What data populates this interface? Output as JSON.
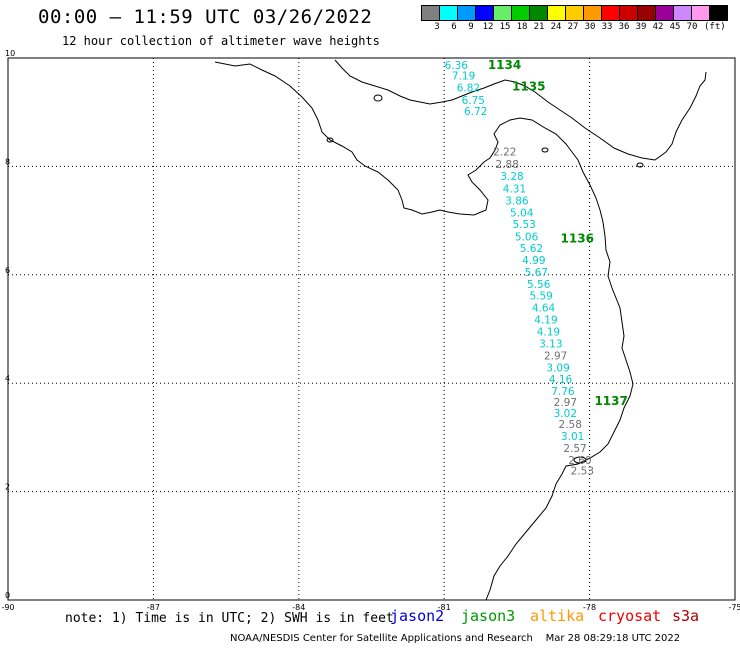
{
  "header": {
    "title": "00:00 – 11:59 UTC 03/26/2022",
    "subtitle": "12 hour collection of altimeter wave heights"
  },
  "legend": {
    "unit": "(ft)",
    "bins": [
      {
        "label": "3",
        "color": "#808080"
      },
      {
        "label": "6",
        "color": "#00ffff"
      },
      {
        "label": "9",
        "color": "#0099ff"
      },
      {
        "label": "12",
        "color": "#0000ff"
      },
      {
        "label": "15",
        "color": "#66ee66"
      },
      {
        "label": "18",
        "color": "#00cc00"
      },
      {
        "label": "21",
        "color": "#008800"
      },
      {
        "label": "24",
        "color": "#ffff00"
      },
      {
        "label": "27",
        "color": "#ffcc00"
      },
      {
        "label": "30",
        "color": "#ff9900"
      },
      {
        "label": "33",
        "color": "#ff0000"
      },
      {
        "label": "36",
        "color": "#cc0000"
      },
      {
        "label": "39",
        "color": "#990000"
      },
      {
        "label": "42",
        "color": "#990099"
      },
      {
        "label": "45",
        "color": "#cc88ff"
      },
      {
        "label": "70",
        "color": "#ff99ee"
      },
      {
        "label": "",
        "color": "#000000"
      }
    ]
  },
  "map": {
    "x_ticks": [
      "-90",
      "-87",
      "-84",
      "-81",
      "-78",
      "-75"
    ],
    "y_ticks": [
      "0",
      "2",
      "4",
      "6",
      "8",
      "10"
    ],
    "x_range": [
      -90,
      -75
    ],
    "y_range": [
      0,
      10
    ],
    "grid": true,
    "pass_labels": [
      {
        "text": "1134",
        "lon": -80.1,
        "lat": 9.8
      },
      {
        "text": "1135",
        "lon": -79.6,
        "lat": 9.4
      },
      {
        "text": "1136",
        "lon": -78.6,
        "lat": 6.6
      },
      {
        "text": "1137",
        "lon": -77.9,
        "lat": 3.6
      }
    ],
    "observations": [
      {
        "v": "6.36",
        "lon": -80.75,
        "lat": 9.8,
        "c": "cyan"
      },
      {
        "v": "7.19",
        "lon": -80.6,
        "lat": 9.6,
        "c": "cyan"
      },
      {
        "v": "6.82",
        "lon": -80.5,
        "lat": 9.38,
        "c": "cyan"
      },
      {
        "v": "6.75",
        "lon": -80.4,
        "lat": 9.15,
        "c": "cyan"
      },
      {
        "v": "6.72",
        "lon": -80.35,
        "lat": 8.95,
        "c": "cyan"
      },
      {
        "v": "2.22",
        "lon": -79.75,
        "lat": 8.2,
        "c": "gray"
      },
      {
        "v": "2.88",
        "lon": -79.7,
        "lat": 7.97,
        "c": "gray"
      },
      {
        "v": "3.28",
        "lon": -79.6,
        "lat": 7.75,
        "c": "cyan"
      },
      {
        "v": "4.31",
        "lon": -79.55,
        "lat": 7.52,
        "c": "cyan"
      },
      {
        "v": "3.86",
        "lon": -79.5,
        "lat": 7.3,
        "c": "cyan"
      },
      {
        "v": "5.04",
        "lon": -79.4,
        "lat": 7.08,
        "c": "cyan"
      },
      {
        "v": "5.53",
        "lon": -79.35,
        "lat": 6.86,
        "c": "cyan"
      },
      {
        "v": "5.06",
        "lon": -79.3,
        "lat": 6.63,
        "c": "cyan"
      },
      {
        "v": "5.62",
        "lon": -79.2,
        "lat": 6.42,
        "c": "cyan"
      },
      {
        "v": "4.99",
        "lon": -79.15,
        "lat": 6.2,
        "c": "cyan"
      },
      {
        "v": "5.67",
        "lon": -79.1,
        "lat": 5.98,
        "c": "cyan"
      },
      {
        "v": "5.56",
        "lon": -79.05,
        "lat": 5.76,
        "c": "cyan"
      },
      {
        "v": "5.59",
        "lon": -79.0,
        "lat": 5.54,
        "c": "cyan"
      },
      {
        "v": "4.64",
        "lon": -78.95,
        "lat": 5.32,
        "c": "cyan"
      },
      {
        "v": "4.19",
        "lon": -78.9,
        "lat": 5.1,
        "c": "cyan"
      },
      {
        "v": "4.19",
        "lon": -78.85,
        "lat": 4.88,
        "c": "cyan"
      },
      {
        "v": "3.13",
        "lon": -78.8,
        "lat": 4.66,
        "c": "cyan"
      },
      {
        "v": "2.97",
        "lon": -78.7,
        "lat": 4.44,
        "c": "gray"
      },
      {
        "v": "3.09",
        "lon": -78.65,
        "lat": 4.22,
        "c": "cyan"
      },
      {
        "v": "4.16",
        "lon": -78.6,
        "lat": 4.0,
        "c": "cyan"
      },
      {
        "v": "7.76",
        "lon": -78.55,
        "lat": 3.78,
        "c": "cyan"
      },
      {
        "v": "2.97",
        "lon": -78.5,
        "lat": 3.58,
        "c": "gray"
      },
      {
        "v": "3.02",
        "lon": -78.5,
        "lat": 3.38,
        "c": "cyan"
      },
      {
        "v": "2.58",
        "lon": -78.4,
        "lat": 3.17,
        "c": "gray"
      },
      {
        "v": "3.01",
        "lon": -78.35,
        "lat": 2.95,
        "c": "cyan"
      },
      {
        "v": "2.57",
        "lon": -78.3,
        "lat": 2.73,
        "c": "gray"
      },
      {
        "v": "2.60",
        "lon": -78.2,
        "lat": 2.51,
        "c": "gray"
      },
      {
        "v": "2.53",
        "lon": -78.15,
        "lat": 2.32,
        "c": "gray"
      }
    ]
  },
  "footer": {
    "note": "note: 1) Time is in UTC; 2) SWH is in feet",
    "satellites": [
      {
        "name": "jason2",
        "color": "#0000dd"
      },
      {
        "name": "jason3",
        "color": "#009900"
      },
      {
        "name": "altika",
        "color": "#ff9900"
      },
      {
        "name": "cryosat",
        "color": "#ee0000"
      },
      {
        "name": "s3a",
        "color": "#aa0000"
      }
    ],
    "credit": "NOAA/NESDIS Center for Satellite Applications and Research    Mar 28 08:29:18 UTC 2022"
  }
}
